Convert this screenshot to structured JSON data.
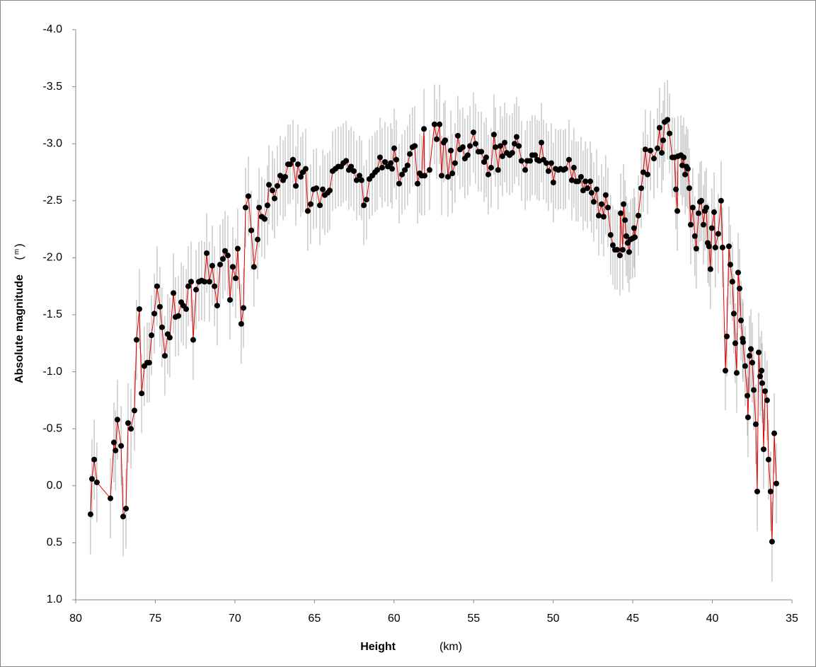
{
  "chart_data": {
    "type": "line",
    "xlabel": "Height",
    "xlabel_unit": "(km)",
    "ylabel": "Absolute magnitude",
    "ylabel_unit": "m",
    "xlim": [
      80,
      35
    ],
    "xticks": [
      80,
      75,
      70,
      65,
      60,
      55,
      50,
      45,
      40,
      35
    ],
    "ylim": [
      1,
      -4
    ],
    "yticks": [
      {
        "value": -4,
        "label": "-4.0"
      },
      -3.5,
      {
        "value": -3,
        "label": "-3.0"
      },
      -2.5,
      {
        "value": -2,
        "label": "-2.0"
      },
      -1.5,
      {
        "value": -1,
        "label": "-1.0"
      },
      -0.5,
      {
        "value": 0,
        "label": "0.0"
      },
      0.5,
      {
        "value": 1,
        "label": "1.0"
      }
    ],
    "grid": false,
    "series": [
      {
        "color": "#e00000",
        "marker_color": "#000000",
        "error_color": "#b0b0b0",
        "error": 0.35,
        "x": [
          79.07,
          78.98,
          78.84,
          78.67,
          77.82,
          77.6,
          77.5,
          77.38,
          77.15,
          77.02,
          76.84,
          76.71,
          76.53,
          76.31,
          76.18,
          76.0,
          75.86,
          75.69,
          75.51,
          75.38,
          75.24,
          75.06,
          74.89,
          74.71,
          74.58,
          74.4,
          74.22,
          74.09,
          73.86,
          73.73,
          73.55,
          73.37,
          73.24,
          73.06,
          72.93,
          72.75,
          72.62,
          72.44,
          72.26,
          72.09,
          71.91,
          71.77,
          71.6,
          71.42,
          71.28,
          71.11,
          70.93,
          70.75,
          70.62,
          70.44,
          70.31,
          70.13,
          69.95,
          69.82,
          69.6,
          69.46,
          69.33,
          69.15,
          68.97,
          68.8,
          68.57,
          68.48,
          68.31,
          68.13,
          67.95,
          67.86,
          67.64,
          67.51,
          67.33,
          67.15,
          66.97,
          66.84,
          66.66,
          66.53,
          66.35,
          66.17,
          66.04,
          65.86,
          65.73,
          65.55,
          65.42,
          65.24,
          65.06,
          64.88,
          64.66,
          64.48,
          64.35,
          64.17,
          64.04,
          63.86,
          63.68,
          63.5,
          63.33,
          63.19,
          63.01,
          62.84,
          62.7,
          62.53,
          62.35,
          62.17,
          62.04,
          61.9,
          61.73,
          61.55,
          61.37,
          61.19,
          61.06,
          60.88,
          60.75,
          60.57,
          60.39,
          60.21,
          60.12,
          59.99,
          59.86,
          59.68,
          59.5,
          59.32,
          59.15,
          59.01,
          58.84,
          58.7,
          58.52,
          58.39,
          58.26,
          58.12,
          58.08,
          57.77,
          57.46,
          57.32,
          57.14,
          57.01,
          56.88,
          56.79,
          56.61,
          56.43,
          56.34,
          56.17,
          55.99,
          55.86,
          55.68,
          55.55,
          55.37,
          55.23,
          55.01,
          54.88,
          54.7,
          54.52,
          54.34,
          54.21,
          54.08,
          53.9,
          53.72,
          53.63,
          53.46,
          53.32,
          53.19,
          53.05,
          52.92,
          52.74,
          52.57,
          52.43,
          52.3,
          52.16,
          51.99,
          51.76,
          51.63,
          51.45,
          51.32,
          51.14,
          51.01,
          50.88,
          50.74,
          50.61,
          50.43,
          50.3,
          50.12,
          49.99,
          49.85,
          49.68,
          49.54,
          49.36,
          49.23,
          49.01,
          48.83,
          48.7,
          48.56,
          48.43,
          48.25,
          48.12,
          47.98,
          47.85,
          47.67,
          47.59,
          47.45,
          47.27,
          47.14,
          46.96,
          46.83,
          46.7,
          46.56,
          46.39,
          46.25,
          46.12,
          45.98,
          45.81,
          45.76,
          45.63,
          45.58,
          45.49,
          45.41,
          45.32,
          45.23,
          45.14,
          45.01,
          44.92,
          44.87,
          44.65,
          44.47,
          44.34,
          44.21,
          44.07,
          43.89,
          43.67,
          43.45,
          43.32,
          43.18,
          43.09,
          43.0,
          42.82,
          42.69,
          42.52,
          42.38,
          42.29,
          42.2,
          42.16,
          41.98,
          41.89,
          41.8,
          41.71,
          41.63,
          41.54,
          41.45,
          41.36,
          41.23,
          41.1,
          41.01,
          40.87,
          40.78,
          40.69,
          40.56,
          40.47,
          40.38,
          40.29,
          40.21,
          40.12,
          40.03,
          39.89,
          39.81,
          39.63,
          39.45,
          39.36,
          39.18,
          39.09,
          38.96,
          38.87,
          38.74,
          38.65,
          38.56,
          38.47,
          38.38,
          38.29,
          38.2,
          38.1,
          38.07,
          37.94,
          37.8,
          37.76,
          37.67,
          37.58,
          37.49,
          37.4,
          37.27,
          37.18,
          37.09,
          37.0,
          36.91,
          36.87,
          36.78,
          36.69,
          36.56,
          36.47,
          36.34,
          36.25,
          36.11,
          35.98
        ],
        "values": [
          0.25,
          -0.06,
          -0.23,
          -0.03,
          0.11,
          -0.38,
          -0.31,
          -0.58,
          -0.35,
          0.27,
          0.2,
          -0.55,
          -0.5,
          -0.66,
          -1.28,
          -1.55,
          -0.81,
          -1.05,
          -1.08,
          -1.08,
          -1.32,
          -1.51,
          -1.75,
          -1.57,
          -1.39,
          -1.14,
          -1.33,
          -1.3,
          -1.69,
          -1.48,
          -1.49,
          -1.61,
          -1.58,
          -1.55,
          -1.75,
          -1.79,
          -1.28,
          -1.72,
          -1.79,
          -1.8,
          -1.79,
          -2.04,
          -1.79,
          -1.93,
          -1.75,
          -1.58,
          -1.94,
          -1.99,
          -2.06,
          -2.02,
          -1.63,
          -1.92,
          -1.82,
          -2.08,
          -1.42,
          -1.56,
          -2.44,
          -2.54,
          -2.24,
          -1.92,
          -2.16,
          -2.44,
          -2.36,
          -2.34,
          -2.46,
          -2.64,
          -2.59,
          -2.52,
          -2.63,
          -2.72,
          -2.68,
          -2.71,
          -2.82,
          -2.82,
          -2.86,
          -2.63,
          -2.82,
          -2.71,
          -2.75,
          -2.78,
          -2.41,
          -2.47,
          -2.6,
          -2.61,
          -2.46,
          -2.6,
          -2.55,
          -2.57,
          -2.59,
          -2.76,
          -2.78,
          -2.8,
          -2.8,
          -2.83,
          -2.85,
          -2.77,
          -2.8,
          -2.76,
          -2.68,
          -2.72,
          -2.68,
          -2.46,
          -2.51,
          -2.69,
          -2.72,
          -2.75,
          -2.77,
          -2.88,
          -2.79,
          -2.84,
          -2.8,
          -2.83,
          -2.78,
          -2.96,
          -2.86,
          -2.65,
          -2.73,
          -2.77,
          -2.81,
          -2.91,
          -2.97,
          -2.98,
          -2.65,
          -2.74,
          -2.72,
          -3.13,
          -2.72,
          -2.77,
          -3.17,
          -3.04,
          -3.17,
          -2.72,
          -3.01,
          -3.03,
          -2.71,
          -2.94,
          -2.74,
          -2.83,
          -3.07,
          -2.95,
          -2.97,
          -2.87,
          -2.9,
          -2.98,
          -3.1,
          -3.0,
          -2.93,
          -2.93,
          -2.84,
          -2.88,
          -2.73,
          -2.79,
          -3.08,
          -2.97,
          -2.77,
          -2.98,
          -2.89,
          -3.01,
          -2.92,
          -2.9,
          -2.92,
          -3.0,
          -3.06,
          -2.98,
          -2.85,
          -2.77,
          -2.85,
          -2.85,
          -2.9,
          -2.9,
          -2.86,
          -2.85,
          -3.01,
          -2.86,
          -2.83,
          -2.76,
          -2.83,
          -2.66,
          -2.78,
          -2.77,
          -2.78,
          -2.77,
          -2.78,
          -2.86,
          -2.68,
          -2.79,
          -2.67,
          -2.67,
          -2.71,
          -2.59,
          -2.67,
          -2.61,
          -2.67,
          -2.57,
          -2.49,
          -2.6,
          -2.37,
          -2.47,
          -2.36,
          -2.55,
          -2.44,
          -2.2,
          -2.11,
          -2.07,
          -2.07,
          -2.02,
          -2.39,
          -2.07,
          -2.47,
          -2.33,
          -2.19,
          -2.13,
          -2.05,
          -2.16,
          -2.17,
          -2.26,
          -2.18,
          -2.37,
          -2.61,
          -2.75,
          -2.95,
          -2.73,
          -2.94,
          -2.87,
          -2.96,
          -3.14,
          -2.92,
          -3.03,
          -3.19,
          -3.21,
          -3.09,
          -2.88,
          -2.88,
          -2.6,
          -2.41,
          -2.89,
          -2.9,
          -2.81,
          -2.88,
          -2.73,
          -2.8,
          -2.78,
          -2.61,
          -2.29,
          -2.44,
          -2.19,
          -2.08,
          -2.39,
          -2.49,
          -2.5,
          -2.29,
          -2.41,
          -2.44,
          -2.13,
          -2.1,
          -1.9,
          -2.26,
          -2.4,
          -2.09,
          -2.21,
          -2.5,
          -2.09,
          -1.01,
          -1.31,
          -2.1,
          -1.94,
          -1.79,
          -1.51,
          -1.25,
          -0.99,
          -1.87,
          -1.73,
          -1.45,
          -1.29,
          -1.26,
          -1.05,
          -0.79,
          -0.6,
          -1.14,
          -1.2,
          -1.08,
          -0.84,
          -0.54,
          0.05,
          -1.17,
          -0.96,
          -1.01,
          -0.9,
          -0.32,
          -0.83,
          -0.75,
          -0.23,
          0.05,
          0.49,
          -0.46,
          -0.02
        ]
      }
    ]
  }
}
